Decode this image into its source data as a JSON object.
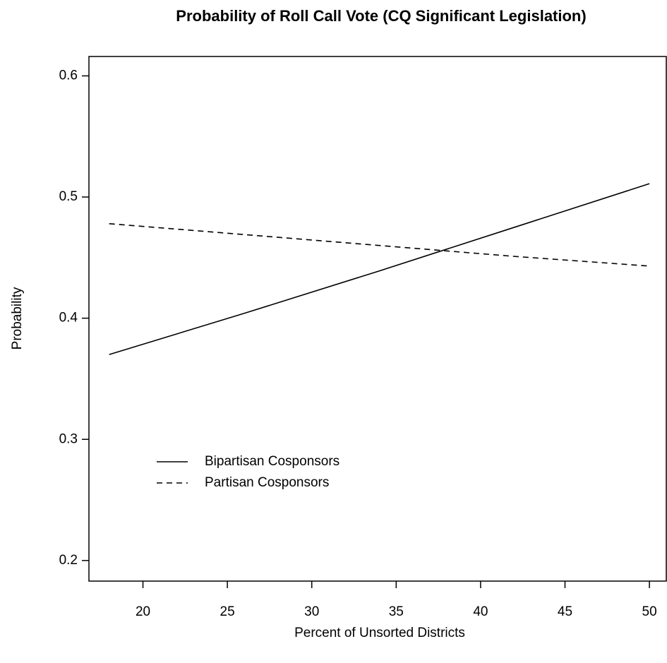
{
  "chart_data": {
    "type": "line",
    "title": "Probability of Roll Call Vote (CQ Significant Legislation)",
    "x_label": "Percent of Unsorted Districts",
    "y_label": "Probability",
    "x": [
      18,
      26,
      34,
      42,
      50
    ],
    "series": [
      {
        "name": "Bipartisan Cosponsors",
        "color": "#000000",
        "line_style": "solid",
        "values": [
          0.37,
          0.404,
          0.439,
          0.475,
          0.511
        ]
      },
      {
        "name": "Partisan Cosponsors",
        "color": "#000000",
        "line_style": "dashed",
        "values": [
          0.478,
          0.469,
          0.46,
          0.451,
          0.443
        ]
      }
    ],
    "xlim": [
      16.8,
      51.0
    ],
    "xticks": [
      20,
      25,
      30,
      35,
      40,
      45,
      50
    ],
    "ylim": [
      0.183,
      0.616
    ],
    "yticks": [
      0.2,
      0.3,
      0.4,
      0.5,
      0.6
    ],
    "legend": "bottom-left",
    "grid": false
  }
}
